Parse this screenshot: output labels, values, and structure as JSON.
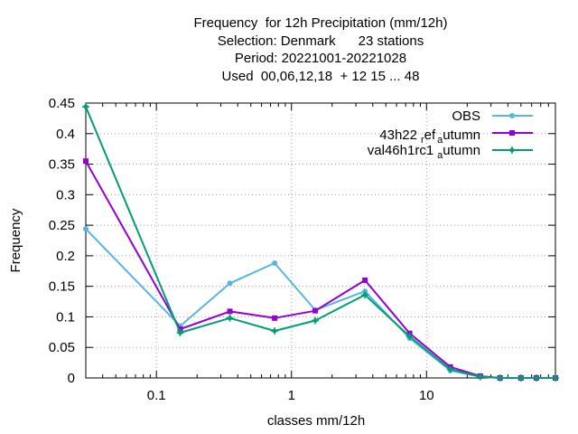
{
  "chart_data": {
    "type": "line",
    "title_lines": [
      "Frequency  for 12h Precipitation (mm/12h)",
      "Selection: Denmark      23 stations",
      "Period: 20221001-20221028",
      "Used  00,06,12,18  + 12 15 ... 48"
    ],
    "xlabel": "classes mm/12h",
    "ylabel": "Frequency",
    "x_scale": "log",
    "xlim": [
      0.03,
      90
    ],
    "ylim": [
      0,
      0.45
    ],
    "x_ticks": [
      0.1,
      1,
      10
    ],
    "x_tick_labels": [
      "0.1",
      "1",
      "10"
    ],
    "y_ticks": [
      0,
      0.05,
      0.1,
      0.15,
      0.2,
      0.25,
      0.3,
      0.35,
      0.4,
      0.45
    ],
    "y_tick_labels": [
      "0",
      "0.05",
      "0.1",
      "0.15",
      "0.2",
      "0.25",
      "0.3",
      "0.35",
      "0.4",
      "0.45"
    ],
    "grid": true,
    "legend_position": "top-right",
    "x": [
      0.03,
      0.15,
      0.35,
      0.75,
      1.5,
      3.5,
      7.5,
      15,
      25,
      35,
      50,
      65,
      90
    ],
    "series": [
      {
        "name": "OBS",
        "color": "#56b4e9",
        "marker": "circle",
        "values": [
          0.244,
          0.085,
          0.155,
          0.188,
          0.111,
          0.142,
          0.065,
          0.012,
          0.002,
          0.0,
          0.0,
          0.0,
          0.0
        ]
      },
      {
        "name_main": "43h22",
        "name_sub": "r",
        "name_mid": "ef",
        "name_sub2": "a",
        "name_end": "utumn",
        "color": "#9400d3",
        "marker": "square",
        "values": [
          0.355,
          0.08,
          0.109,
          0.098,
          0.11,
          0.16,
          0.073,
          0.018,
          0.003,
          0.0,
          0.0,
          0.0,
          0.0
        ]
      },
      {
        "name_main": "val46h1rc1",
        "name_sub": "a",
        "name_end": "utumn",
        "color": "#009e73",
        "marker": "star",
        "values": [
          0.444,
          0.074,
          0.098,
          0.077,
          0.094,
          0.136,
          0.068,
          0.014,
          0.002,
          0.0,
          0.0,
          0.0,
          0.0
        ]
      }
    ]
  }
}
